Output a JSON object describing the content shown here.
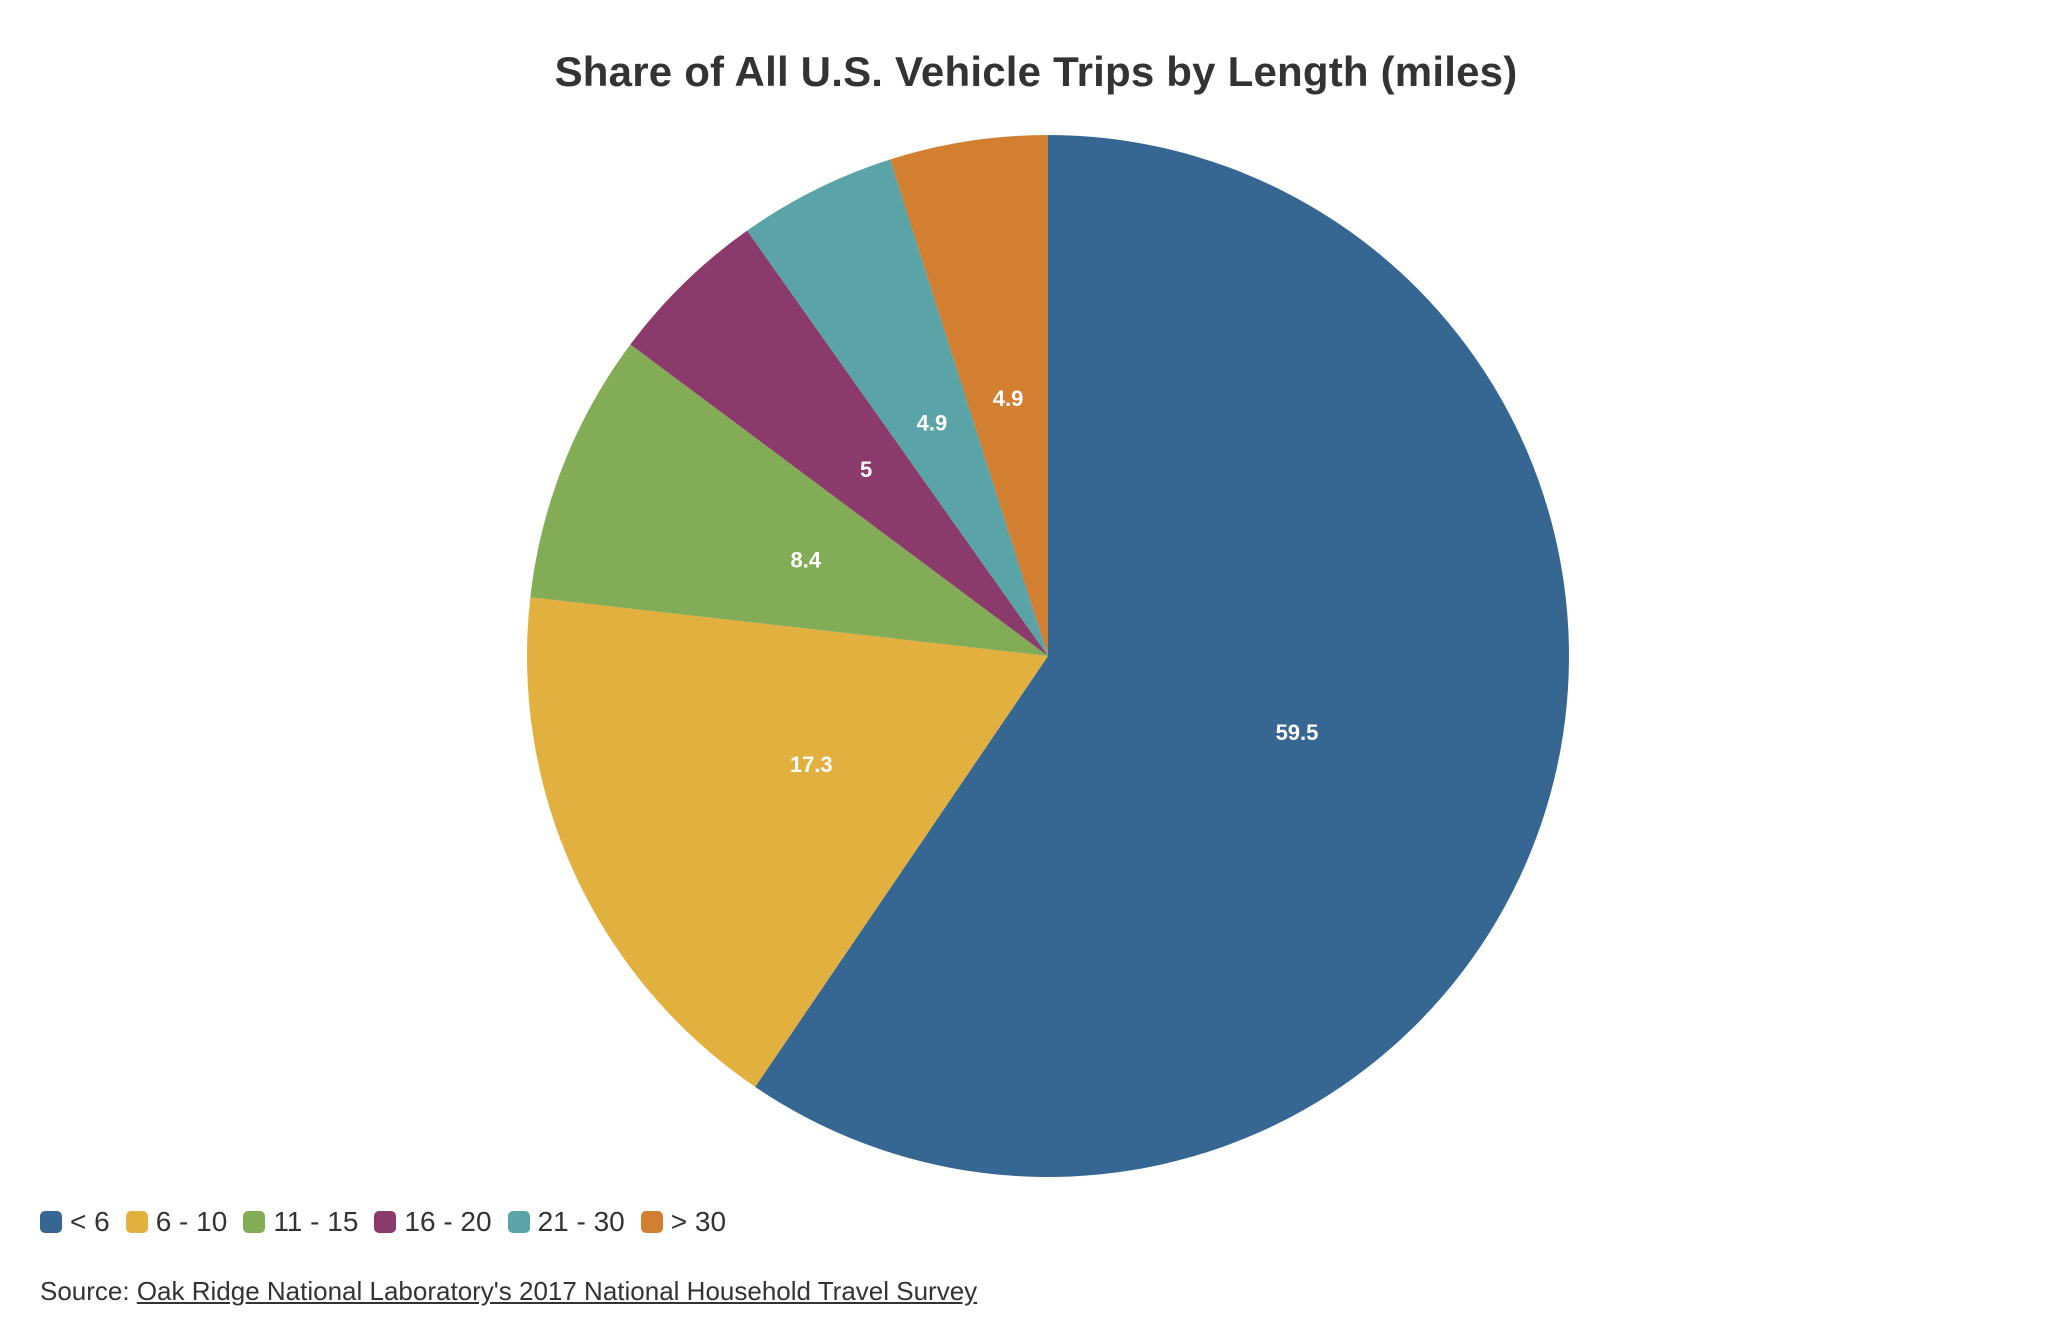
{
  "title": "Share of All U.S. Vehicle Trips by Length (miles)",
  "source": {
    "prefix": "Source: ",
    "link_text": "Oak Ridge National Laboratory's 2017 National Household Travel Survey"
  },
  "chart_data": {
    "type": "pie",
    "title": "Share of All U.S. Vehicle Trips by Length (miles)",
    "categories": [
      "< 6",
      "6 - 10",
      "11 - 15",
      "16 - 20",
      "21 - 30",
      "> 30"
    ],
    "values": [
      59.5,
      17.3,
      8.4,
      5,
      4.9,
      4.9
    ],
    "value_labels": [
      "59.5",
      "17.3",
      "8.4",
      "5",
      "4.9",
      "4.9"
    ],
    "colors": [
      "#366792",
      "#E2B03E",
      "#83AC56",
      "#8A3A6B",
      "#5AA3A6",
      "#D27F31"
    ],
    "start": "12 o'clock",
    "direction": "clockwise",
    "legend_position": "bottom-left"
  }
}
